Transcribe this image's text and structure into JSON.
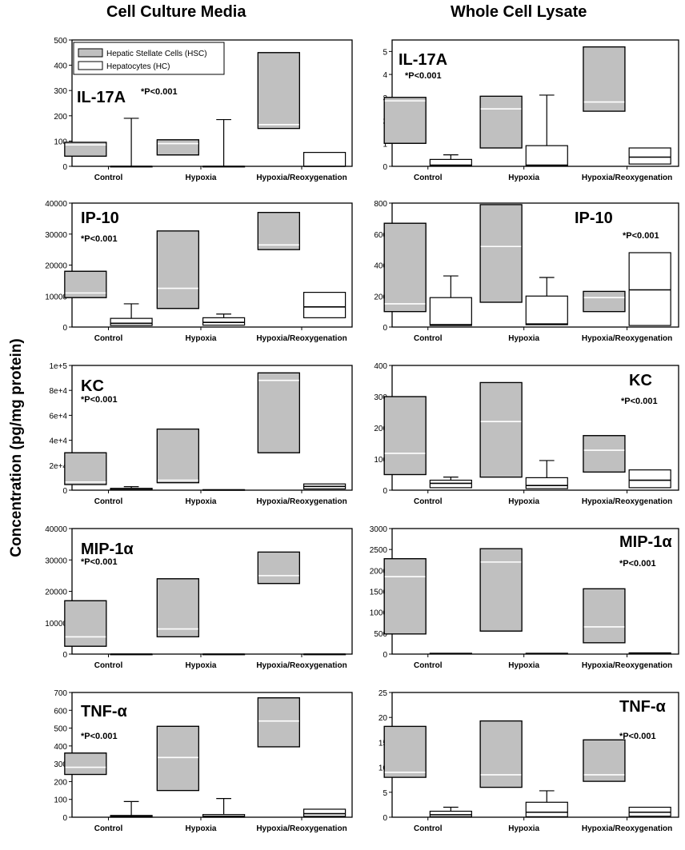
{
  "figure": {
    "left_title": "Cell Culture Media",
    "right_title": "Whole Cell Lysate",
    "y_axis_label": "Concentration (pg/mg protein)"
  },
  "colors": {
    "hsc_fill": "#c0c0c0",
    "hc_fill": "#ffffff",
    "stroke": "#000000"
  },
  "chart_data": [
    {
      "type": "box",
      "title": "IL-17A",
      "pvalue": "*P<0.001",
      "panel": "media",
      "categories": [
        "Control",
        "Hypoxia",
        "Hypoxia/Reoxygenation"
      ],
      "ylim": [
        0,
        500
      ],
      "yticks": [
        "0",
        "100",
        "200",
        "300",
        "400",
        "500"
      ],
      "legend": [
        "Hepatic Stellate Cells (HSC)",
        "Hepatocytes (HC)"
      ],
      "series": [
        {
          "name": "Hepatic Stellate Cells (HSC)",
          "boxes": [
            {
              "q1": 40,
              "median": 85,
              "q3": 95
            },
            {
              "q1": 45,
              "median": 90,
              "q3": 105
            },
            {
              "q1": 150,
              "median": 165,
              "q3": 450
            }
          ]
        },
        {
          "name": "Hepatocytes (HC)",
          "boxes": [
            {
              "q1": 0,
              "median": 0,
              "q3": 0,
              "whisker_high": 190
            },
            {
              "q1": 0,
              "median": 0,
              "q3": 0,
              "whisker_high": 185
            },
            {
              "q1": 0,
              "median": 0,
              "q3": 55
            }
          ]
        }
      ]
    },
    {
      "type": "box",
      "title": "IL-17A",
      "pvalue": "*P<0.001",
      "panel": "lysate",
      "categories": [
        "Control",
        "Hypoxia",
        "Hypoxia/Reoxygenation"
      ],
      "ylim": [
        0,
        5.5
      ],
      "yticks": [
        "0",
        "1",
        "2",
        "3",
        "4",
        "5"
      ],
      "series": [
        {
          "name": "Hepatic Stellate Cells (HSC)",
          "boxes": [
            {
              "q1": 1.0,
              "median": 2.85,
              "q3": 3.0
            },
            {
              "q1": 0.8,
              "median": 2.5,
              "q3": 3.05
            },
            {
              "q1": 2.4,
              "median": 2.8,
              "q3": 5.2
            }
          ]
        },
        {
          "name": "Hepatocytes (HC)",
          "boxes": [
            {
              "q1": 0.02,
              "median": 0.05,
              "q3": 0.3,
              "whisker_high": 0.5
            },
            {
              "q1": 0.02,
              "median": 0.05,
              "q3": 0.9,
              "whisker_high": 3.1
            },
            {
              "q1": 0.1,
              "median": 0.4,
              "q3": 0.8
            }
          ]
        }
      ]
    },
    {
      "type": "box",
      "title": "IP-10",
      "pvalue": "*P<0.001",
      "panel": "media",
      "categories": [
        "Control",
        "Hypoxia",
        "Hypoxia/Reoxygenation"
      ],
      "ylim": [
        0,
        40000
      ],
      "yticks": [
        "0",
        "10000",
        "20000",
        "30000",
        "40000"
      ],
      "series": [
        {
          "name": "Hepatic Stellate Cells (HSC)",
          "boxes": [
            {
              "q1": 9500,
              "median": 11000,
              "q3": 18000
            },
            {
              "q1": 6000,
              "median": 12500,
              "q3": 31000
            },
            {
              "q1": 25000,
              "median": 26500,
              "q3": 37000
            }
          ]
        },
        {
          "name": "Hepatocytes (HC)",
          "boxes": [
            {
              "q1": 500,
              "median": 1200,
              "q3": 2800,
              "whisker_high": 7500
            },
            {
              "q1": 600,
              "median": 1500,
              "q3": 3000,
              "whisker_high": 4200
            },
            {
              "q1": 3000,
              "median": 6500,
              "q3": 11200
            }
          ]
        }
      ]
    },
    {
      "type": "box",
      "title": "IP-10",
      "pvalue": "*P<0.001",
      "panel": "lysate",
      "categories": [
        "Control",
        "Hypoxia",
        "Hypoxia/Reoxygenation"
      ],
      "ylim": [
        0,
        800
      ],
      "yticks": [
        "0",
        "200",
        "400",
        "600",
        "800"
      ],
      "series": [
        {
          "name": "Hepatic Stellate Cells (HSC)",
          "boxes": [
            {
              "q1": 100,
              "median": 150,
              "q3": 670
            },
            {
              "q1": 160,
              "median": 520,
              "q3": 790
            },
            {
              "q1": 100,
              "median": 190,
              "q3": 230
            }
          ]
        },
        {
          "name": "Hepatocytes (HC)",
          "boxes": [
            {
              "q1": 10,
              "median": 15,
              "q3": 190,
              "whisker_high": 330
            },
            {
              "q1": 15,
              "median": 20,
              "q3": 200,
              "whisker_high": 320
            },
            {
              "q1": 10,
              "median": 240,
              "q3": 480
            }
          ]
        }
      ]
    },
    {
      "type": "box",
      "title": "KC",
      "pvalue": "*P<0.001",
      "panel": "media",
      "categories": [
        "Control",
        "Hypoxia",
        "Hypoxia/Reoxygenation"
      ],
      "ylim": [
        0,
        100000
      ],
      "yticks": [
        "0",
        "2e+4",
        "4e+4",
        "6e+4",
        "8e+4",
        "1e+5"
      ],
      "series": [
        {
          "name": "Hepatic Stellate Cells (HSC)",
          "boxes": [
            {
              "q1": 4500,
              "median": 6500,
              "q3": 30000
            },
            {
              "q1": 6000,
              "median": 8000,
              "q3": 49000
            },
            {
              "q1": 30000,
              "median": 88000,
              "q3": 94000
            }
          ]
        },
        {
          "name": "Hepatocytes (HC)",
          "boxes": [
            {
              "q1": 200,
              "median": 500,
              "q3": 1500,
              "whisker_high": 2800
            },
            {
              "q1": 100,
              "median": 200,
              "q3": 400
            },
            {
              "q1": 1000,
              "median": 3000,
              "q3": 5000
            }
          ]
        }
      ]
    },
    {
      "type": "box",
      "title": "KC",
      "pvalue": "*P<0.001",
      "panel": "lysate",
      "categories": [
        "Control",
        "Hypoxia",
        "Hypoxia/Reoxygenation"
      ],
      "ylim": [
        0,
        400
      ],
      "yticks": [
        "0",
        "100",
        "200",
        "300",
        "400"
      ],
      "series": [
        {
          "name": "Hepatic Stellate Cells (HSC)",
          "boxes": [
            {
              "q1": 50,
              "median": 118,
              "q3": 300
            },
            {
              "q1": 42,
              "median": 220,
              "q3": 345
            },
            {
              "q1": 58,
              "median": 128,
              "q3": 175
            }
          ]
        },
        {
          "name": "Hepatocytes (HC)",
          "boxes": [
            {
              "q1": 8,
              "median": 22,
              "q3": 32,
              "whisker_high": 42
            },
            {
              "q1": 5,
              "median": 15,
              "q3": 40,
              "whisker_high": 95
            },
            {
              "q1": 8,
              "median": 32,
              "q3": 65
            }
          ]
        }
      ]
    },
    {
      "type": "box",
      "title": "MIP-1α",
      "pvalue": "*P<0.001",
      "panel": "media",
      "categories": [
        "Control",
        "Hypoxia",
        "Hypoxia/Reoxygenation"
      ],
      "ylim": [
        0,
        40000
      ],
      "yticks": [
        "0",
        "10000",
        "20000",
        "30000",
        "40000"
      ],
      "series": [
        {
          "name": "Hepatic Stellate Cells (HSC)",
          "boxes": [
            {
              "q1": 2500,
              "median": 5500,
              "q3": 17000
            },
            {
              "q1": 5500,
              "median": 8000,
              "q3": 24000
            },
            {
              "q1": 22500,
              "median": 25000,
              "q3": 32500
            }
          ]
        },
        {
          "name": "Hepatocytes (HC)",
          "boxes": [
            {
              "q1": 0,
              "median": 0,
              "q3": 0
            },
            {
              "q1": 0,
              "median": 0,
              "q3": 0
            },
            {
              "q1": 0,
              "median": 0,
              "q3": 0
            }
          ]
        }
      ]
    },
    {
      "type": "box",
      "title": "MIP-1α",
      "pvalue": "*P<0.001",
      "panel": "lysate",
      "categories": [
        "Control",
        "Hypoxia",
        "Hypoxia/Reoxygenation"
      ],
      "ylim": [
        0,
        3000
      ],
      "yticks": [
        "0",
        "500",
        "1000",
        "1500",
        "2000",
        "2500",
        "3000"
      ],
      "series": [
        {
          "name": "Hepatic Stellate Cells (HSC)",
          "boxes": [
            {
              "q1": 480,
              "median": 1850,
              "q3": 2280
            },
            {
              "q1": 550,
              "median": 2200,
              "q3": 2520
            },
            {
              "q1": 270,
              "median": 650,
              "q3": 1560
            }
          ]
        },
        {
          "name": "Hepatocytes (HC)",
          "boxes": [
            {
              "q1": 5,
              "median": 10,
              "q3": 20
            },
            {
              "q1": 5,
              "median": 10,
              "q3": 20
            },
            {
              "q1": 5,
              "median": 15,
              "q3": 30
            }
          ]
        }
      ]
    },
    {
      "type": "box",
      "title": "TNF-α",
      "pvalue": "*P<0.001",
      "panel": "media",
      "categories": [
        "Control",
        "Hypoxia",
        "Hypoxia/Reoxygenation"
      ],
      "ylim": [
        0,
        700
      ],
      "yticks": [
        "0",
        "100",
        "200",
        "300",
        "400",
        "500",
        "600",
        "700"
      ],
      "series": [
        {
          "name": "Hepatic Stellate Cells (HSC)",
          "boxes": [
            {
              "q1": 240,
              "median": 280,
              "q3": 360
            },
            {
              "q1": 150,
              "median": 335,
              "q3": 510
            },
            {
              "q1": 395,
              "median": 540,
              "q3": 670
            }
          ]
        },
        {
          "name": "Hepatocytes (HC)",
          "boxes": [
            {
              "q1": 0,
              "median": 5,
              "q3": 10,
              "whisker_high": 88
            },
            {
              "q1": 0,
              "median": 5,
              "q3": 15,
              "whisker_high": 105
            },
            {
              "q1": 5,
              "median": 20,
              "q3": 45
            }
          ]
        }
      ]
    },
    {
      "type": "box",
      "title": "TNF-α",
      "pvalue": "*P<0.001",
      "panel": "lysate",
      "categories": [
        "Control",
        "Hypoxia",
        "Hypoxia/Reoxygenation"
      ],
      "ylim": [
        0,
        25
      ],
      "yticks": [
        "0",
        "5",
        "10",
        "15",
        "20",
        "25"
      ],
      "series": [
        {
          "name": "Hepatic Stellate Cells (HSC)",
          "boxes": [
            {
              "q1": 8,
              "median": 9,
              "q3": 18.2
            },
            {
              "q1": 6,
              "median": 8.5,
              "q3": 19.3
            },
            {
              "q1": 7.2,
              "median": 8.5,
              "q3": 15.5
            }
          ]
        },
        {
          "name": "Hepatocytes (HC)",
          "boxes": [
            {
              "q1": 0.1,
              "median": 0.5,
              "q3": 1.2,
              "whisker_high": 2
            },
            {
              "q1": 0.1,
              "median": 1.0,
              "q3": 3.0,
              "whisker_high": 5.3
            },
            {
              "q1": 0.2,
              "median": 1.0,
              "q3": 2.0
            }
          ]
        }
      ]
    }
  ]
}
